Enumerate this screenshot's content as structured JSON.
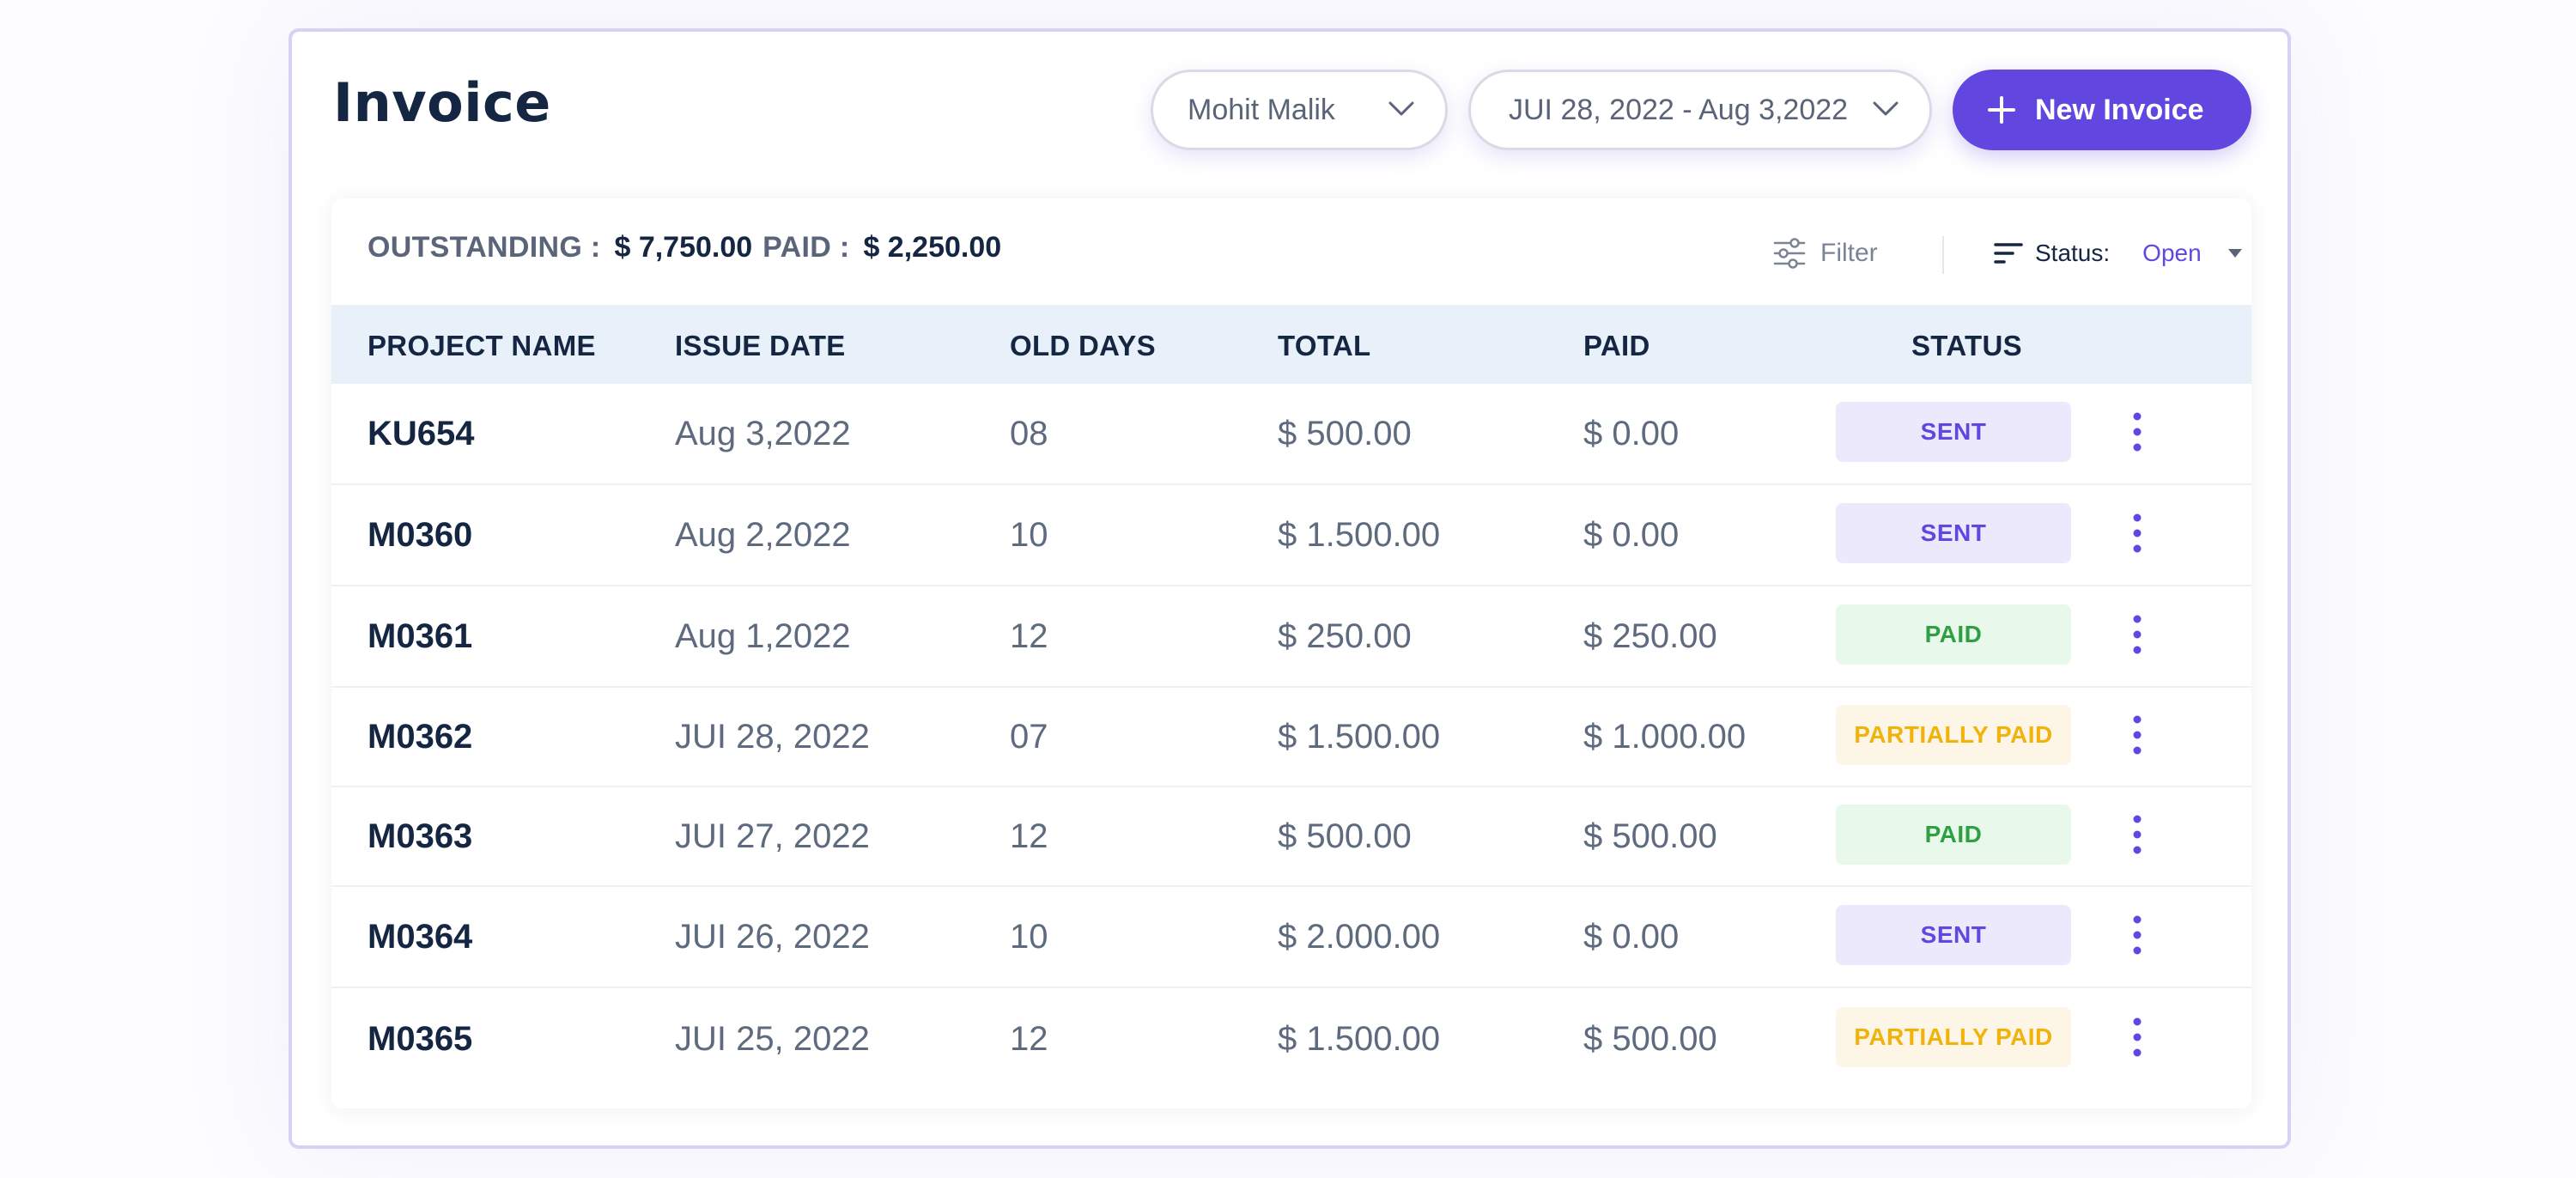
{
  "title": "Invoice",
  "client_select": {
    "value": "Mohit Malik"
  },
  "date_range": {
    "value": "JUI 28, 2022 - Aug 3,2022"
  },
  "new_invoice_label": "New Invoice",
  "summary": {
    "outstanding_label": "OUTSTANDING :",
    "outstanding_value": "$ 7,750.00",
    "paid_label": "PAID :",
    "paid_value": "$ 2,250.00"
  },
  "filter_label": "Filter",
  "status_filter": {
    "label": "Status:",
    "value": "Open"
  },
  "columns": [
    "PROJECT NAME",
    "ISSUE DATE",
    "OLD DAYS",
    "TOTAL",
    "PAID",
    "STATUS"
  ],
  "rows": [
    {
      "project": "KU654",
      "issue_date": "Aug 3,2022",
      "old_days": "08",
      "total": "$ 500.00",
      "paid": "$ 0.00",
      "status": "SENT",
      "status_type": "sent"
    },
    {
      "project": "M0360",
      "issue_date": "Aug 2,2022",
      "old_days": "10",
      "total": "$ 1.500.00",
      "paid": "$ 0.00",
      "status": "SENT",
      "status_type": "sent"
    },
    {
      "project": "M0361",
      "issue_date": "Aug 1,2022",
      "old_days": "12",
      "total": "$ 250.00",
      "paid": "$ 250.00",
      "status": "PAID",
      "status_type": "paid"
    },
    {
      "project": "M0362",
      "issue_date": "JUI 28, 2022",
      "old_days": "07",
      "total": "$ 1.500.00",
      "paid": "$ 1.000.00",
      "status": "PARTIALLY PAID",
      "status_type": "partial"
    },
    {
      "project": "M0363",
      "issue_date": "JUI 27, 2022",
      "old_days": "12",
      "total": "$ 500.00",
      "paid": "$ 500.00",
      "status": "PAID",
      "status_type": "paid"
    },
    {
      "project": "M0364",
      "issue_date": "JUI 26, 2022",
      "old_days": "10",
      "total": "$ 2.000.00",
      "paid": "$ 0.00",
      "status": "SENT",
      "status_type": "sent"
    },
    {
      "project": "M0365",
      "issue_date": "JUI 25, 2022",
      "old_days": "12",
      "total": "$ 1.500.00",
      "paid": "$ 500.00",
      "status": "PARTIALLY PAID",
      "status_type": "partial"
    }
  ],
  "status_colors": {
    "sent": {
      "bg": "#ebe9fb",
      "fg": "#6147e0"
    },
    "paid": {
      "bg": "#e8f9ec",
      "fg": "#2ea043"
    },
    "partial": {
      "bg": "#fdf6e6",
      "fg": "#f2b20c"
    }
  },
  "colors": {
    "accent": "#6147e0",
    "text_dark": "#142642",
    "text_muted": "#5e6a7e",
    "header_bg": "#e8f0f9"
  }
}
